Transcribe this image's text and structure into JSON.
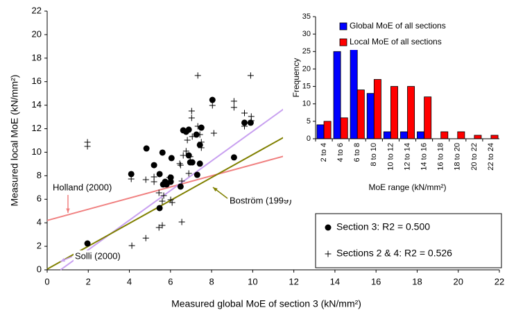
{
  "chart_data": [
    {
      "type": "scatter",
      "xlabel": "Measured global MoE of section 3 (kN/mm²)",
      "ylabel": "Measured local MoE (kN/mm²)",
      "xlabel_color": "#6666ff",
      "ylabel_color": "#ff3333",
      "xlim": [
        0,
        22
      ],
      "ylim": [
        0,
        22
      ],
      "xticks": [
        0,
        2,
        4,
        6,
        8,
        10,
        12,
        14,
        16,
        18,
        20,
        22
      ],
      "yticks": [
        0,
        2,
        4,
        6,
        8,
        10,
        12,
        14,
        16,
        18,
        20,
        22
      ],
      "grid": false,
      "legend": "lower right",
      "series": [
        {
          "name": "Section 3: R2 = 0.500",
          "type": "scatter",
          "marker": "circle",
          "color": "#000000",
          "x": [
            1.96,
            4.09,
            4.83,
            5.2,
            5.47,
            5.47,
            5.61,
            5.64,
            5.74,
            5.81,
            6.01,
            6.01,
            6.05,
            6.49,
            6.62,
            6.76,
            6.89,
            6.89,
            6.96,
            7.06,
            7.26,
            7.3,
            7.43,
            7.43,
            7.5,
            8.04,
            9.09,
            9.6,
            9.9,
            12.16
          ],
          "values": [
            2.24,
            8.14,
            10.32,
            8.9,
            8.14,
            5.25,
            9.97,
            7.26,
            7.49,
            7.26,
            7.85,
            7.49,
            9.5,
            7.08,
            11.86,
            11.74,
            11.92,
            9.73,
            9.14,
            9.14,
            11.5,
            8.08,
            9.03,
            10.62,
            12.09,
            14.45,
            9.56,
            12.51,
            12.51,
            11.56
          ]
        },
        {
          "name": "Sections 2 & 4: R2 = 0.526",
          "type": "scatter",
          "marker": "plus",
          "color": "#000000",
          "x": [
            1.96,
            1.96,
            4.09,
            4.12,
            4.8,
            4.8,
            5.2,
            5.2,
            5.44,
            5.44,
            5.6,
            5.6,
            5.67,
            5.95,
            6.01,
            6.08,
            6.45,
            6.49,
            6.55,
            6.55,
            6.62,
            6.76,
            6.82,
            6.89,
            6.96,
            7.03,
            7.03,
            7.06,
            7.33,
            7.33,
            7.43,
            7.5,
            7.5,
            8.04,
            8.11,
            9.09,
            9.09,
            9.6,
            9.6,
            9.9,
            9.93,
            9.93,
            12.16,
            12.16
          ],
          "values": [
            10.85,
            10.5,
            7.73,
            2.06,
            2.7,
            7.67,
            7.9,
            7.49,
            6.55,
            3.6,
            3.78,
            5.84,
            6.31,
            7.85,
            5.96,
            5.72,
            9.03,
            8.9,
            4.07,
            7.55,
            9.73,
            10.09,
            11.03,
            8.2,
            9.62,
            12.92,
            13.51,
            11.33,
            16.52,
            12.21,
            11.5,
            10.86,
            10.38,
            13.98,
            11.62,
            14.34,
            13.81,
            13.33,
            12.21,
            16.52,
            13.04,
            12.68,
            20.47,
            18.88
          ]
        },
        {
          "name": "Holland (2000)",
          "type": "line",
          "color": "#f08080",
          "x": [
            0,
            12.16
          ],
          "values": [
            4.2,
            9.97
          ]
        },
        {
          "name": "Solli (2000)",
          "type": "line",
          "color": "#c8a0f0",
          "x": [
            0.65,
            12.16
          ],
          "values": [
            0,
            14.5
          ]
        },
        {
          "name": "Boström (1999)",
          "type": "line",
          "color": "#808000",
          "x": [
            0,
            12.16
          ],
          "values": [
            0.06,
            11.9
          ]
        }
      ]
    },
    {
      "type": "bar",
      "xlabel": "MoE range (kN/mm²)",
      "ylabel": "Frequency",
      "categories": [
        "2 to 4",
        "4 to 6",
        "6 to 8",
        "8 to 10",
        "10 to 12",
        "12 to 14",
        "14 to 16",
        "16 to 18",
        "18 to 20",
        "20 to 22",
        "22 to 24"
      ],
      "ylim": [
        0,
        35
      ],
      "yticks": [
        0,
        5,
        10,
        15,
        20,
        25,
        30,
        35
      ],
      "grid": false,
      "legend": "upper right",
      "series": [
        {
          "name": "Global MoE of all sections",
          "color": "#0000ff",
          "values": [
            4,
            25,
            29,
            13,
            2,
            2,
            2,
            0,
            0,
            0,
            0
          ]
        },
        {
          "name": "Local MoE of all sections",
          "color": "#ff0000",
          "values": [
            5,
            6,
            14,
            17,
            15,
            15,
            12,
            2,
            2,
            1,
            1
          ]
        }
      ]
    }
  ]
}
